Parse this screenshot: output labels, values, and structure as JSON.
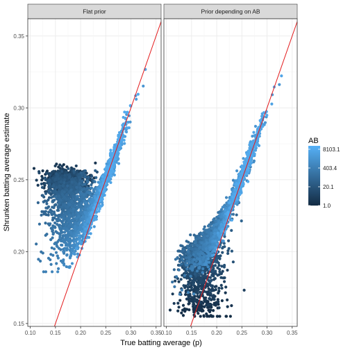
{
  "chart_data": {
    "type": "scatter",
    "xlabel": "True batting average (p)",
    "ylabel": "Shrunken batting average estimate",
    "xlim": [
      0.095,
      0.36
    ],
    "ylim": [
      0.148,
      0.362
    ],
    "x_ticks": [
      0.1,
      0.15,
      0.2,
      0.25,
      0.3,
      0.35
    ],
    "x_tick_labels": [
      "0.10",
      "0.15",
      "0.20",
      "0.25",
      "0.30",
      "0.35"
    ],
    "y_ticks": [
      0.15,
      0.2,
      0.25,
      0.3,
      0.35
    ],
    "y_tick_labels": [
      "0.15",
      "0.20",
      "0.25",
      "0.30",
      "0.35"
    ],
    "reference_line": {
      "slope": 1,
      "intercept": 0,
      "color": "#e31a1c"
    },
    "panels": [
      {
        "title": "Flat prior",
        "prior_mean": 0.252,
        "min_estimate": 0.186
      },
      {
        "title": "Prior depending on AB",
        "low_ab_mean": 0.155,
        "min_estimate": 0.155
      }
    ],
    "color_scale": {
      "title": "AB",
      "type": "log",
      "breaks": [
        1.0,
        20.1,
        403.4,
        8103.1
      ],
      "labels": [
        "1.0",
        "20.1",
        "403.4",
        "8103.1"
      ],
      "range": [
        1,
        14000
      ],
      "low_color": "#132b43",
      "high_color": "#56b1f7"
    }
  }
}
